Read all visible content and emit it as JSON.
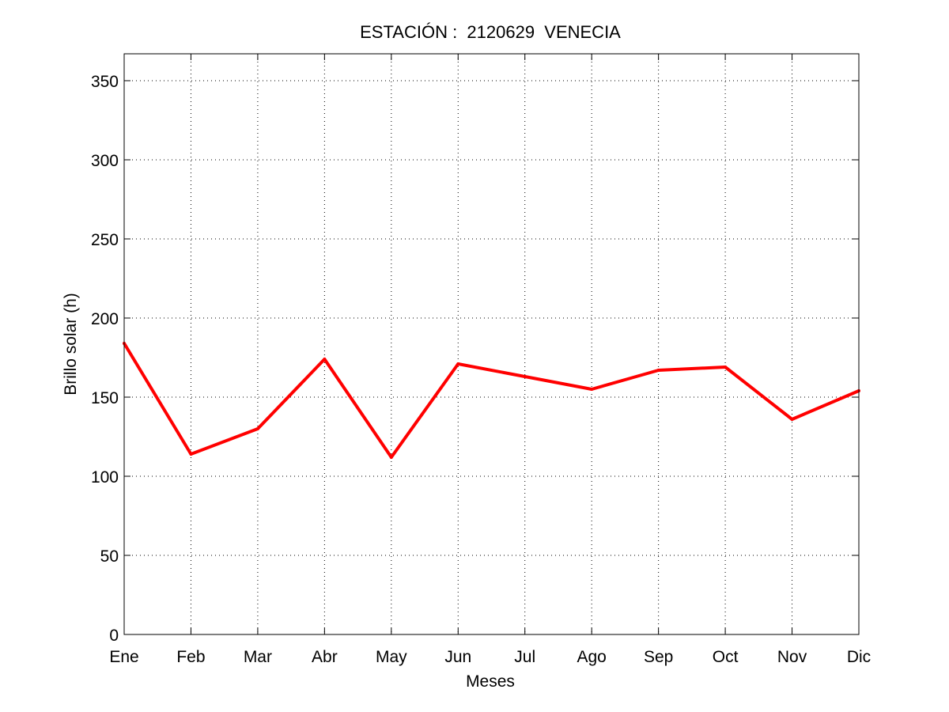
{
  "chart_data": {
    "type": "line",
    "title": "ESTACIÓN :  2120629  VENECIA",
    "xlabel": "Meses",
    "ylabel": "Brillo solar (h)",
    "categories": [
      "Ene",
      "Feb",
      "Mar",
      "Abr",
      "May",
      "Jun",
      "Jul",
      "Ago",
      "Sep",
      "Oct",
      "Nov",
      "Dic"
    ],
    "series": [
      {
        "values": [
          184,
          114,
          130,
          174,
          112,
          171,
          163,
          155,
          167,
          169,
          136,
          154
        ]
      }
    ],
    "ylim": [
      0,
      367
    ],
    "yticks": [
      0,
      50,
      100,
      150,
      200,
      250,
      300,
      350
    ],
    "grid": true,
    "line_color": "#ff0000"
  }
}
